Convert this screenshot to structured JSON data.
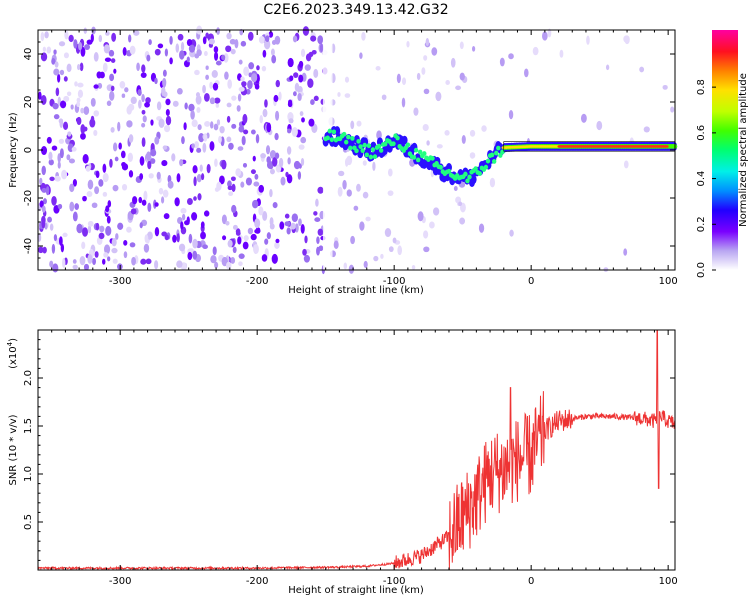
{
  "title": "C2E6.2023.349.13.42.G32",
  "charts": [
    {
      "type": "heatmap",
      "xlabel": "Height of straight line (km)",
      "ylabel": "Frequency (Hz)",
      "xlim": [
        -360,
        105
      ],
      "ylim": [
        -50,
        50
      ],
      "xticks": [
        -300,
        -200,
        -100,
        0,
        100
      ],
      "yticks": [
        -40,
        -20,
        0,
        20,
        40
      ],
      "description_points": [
        {
          "x": -150,
          "y": 6,
          "v": 0.45
        },
        {
          "x": -140,
          "y": 5,
          "v": 0.5
        },
        {
          "x": -115,
          "y": -1,
          "v": 0.4
        },
        {
          "x": -100,
          "y": 4,
          "v": 0.55
        },
        {
          "x": -80,
          "y": -3,
          "v": 0.5
        },
        {
          "x": -60,
          "y": -10,
          "v": 0.45
        },
        {
          "x": -45,
          "y": -12,
          "v": 0.55
        },
        {
          "x": -20,
          "y": 1,
          "v": 0.7
        },
        {
          "x": 0,
          "y": 1.5,
          "v": 0.8
        },
        {
          "x": 40,
          "y": 1.5,
          "v": 0.9
        },
        {
          "x": 80,
          "y": 1.5,
          "v": 0.95
        },
        {
          "x": 100,
          "y": 1.5,
          "v": 0.85
        }
      ]
    },
    {
      "type": "line",
      "xlabel": "Height of straight line (km)",
      "ylabel": "SNR (10 * v/v)",
      "scale_label": "(x10",
      "scale_exp": "4",
      "scale_close": ")",
      "xlim": [
        -360,
        105
      ],
      "ylim": [
        0,
        2.5
      ],
      "xticks": [
        -300,
        -200,
        -100,
        0,
        100
      ],
      "yticks": [
        0.5,
        1.0,
        1.5,
        2.0
      ],
      "series_color": "#ee3333",
      "x": [
        -360,
        -300,
        -200,
        -140,
        -120,
        -100,
        -80,
        -60,
        -50,
        -40,
        -30,
        -20,
        -10,
        0,
        10,
        20,
        40,
        60,
        80,
        90,
        95,
        100,
        105
      ],
      "y": [
        0.02,
        0.02,
        0.02,
        0.03,
        0.04,
        0.07,
        0.15,
        0.35,
        0.55,
        0.75,
        1.0,
        1.05,
        1.15,
        1.2,
        1.45,
        1.55,
        1.6,
        1.6,
        1.58,
        1.55,
        1.6,
        1.55,
        1.52
      ]
    }
  ],
  "colorbar": {
    "label": "Normalized spectral amplitude",
    "ticks": [
      "0.0",
      "0.2",
      "0.4",
      "0.6",
      "0.8"
    ],
    "tick_values": [
      0.0,
      0.2,
      0.4,
      0.6,
      0.8
    ]
  }
}
